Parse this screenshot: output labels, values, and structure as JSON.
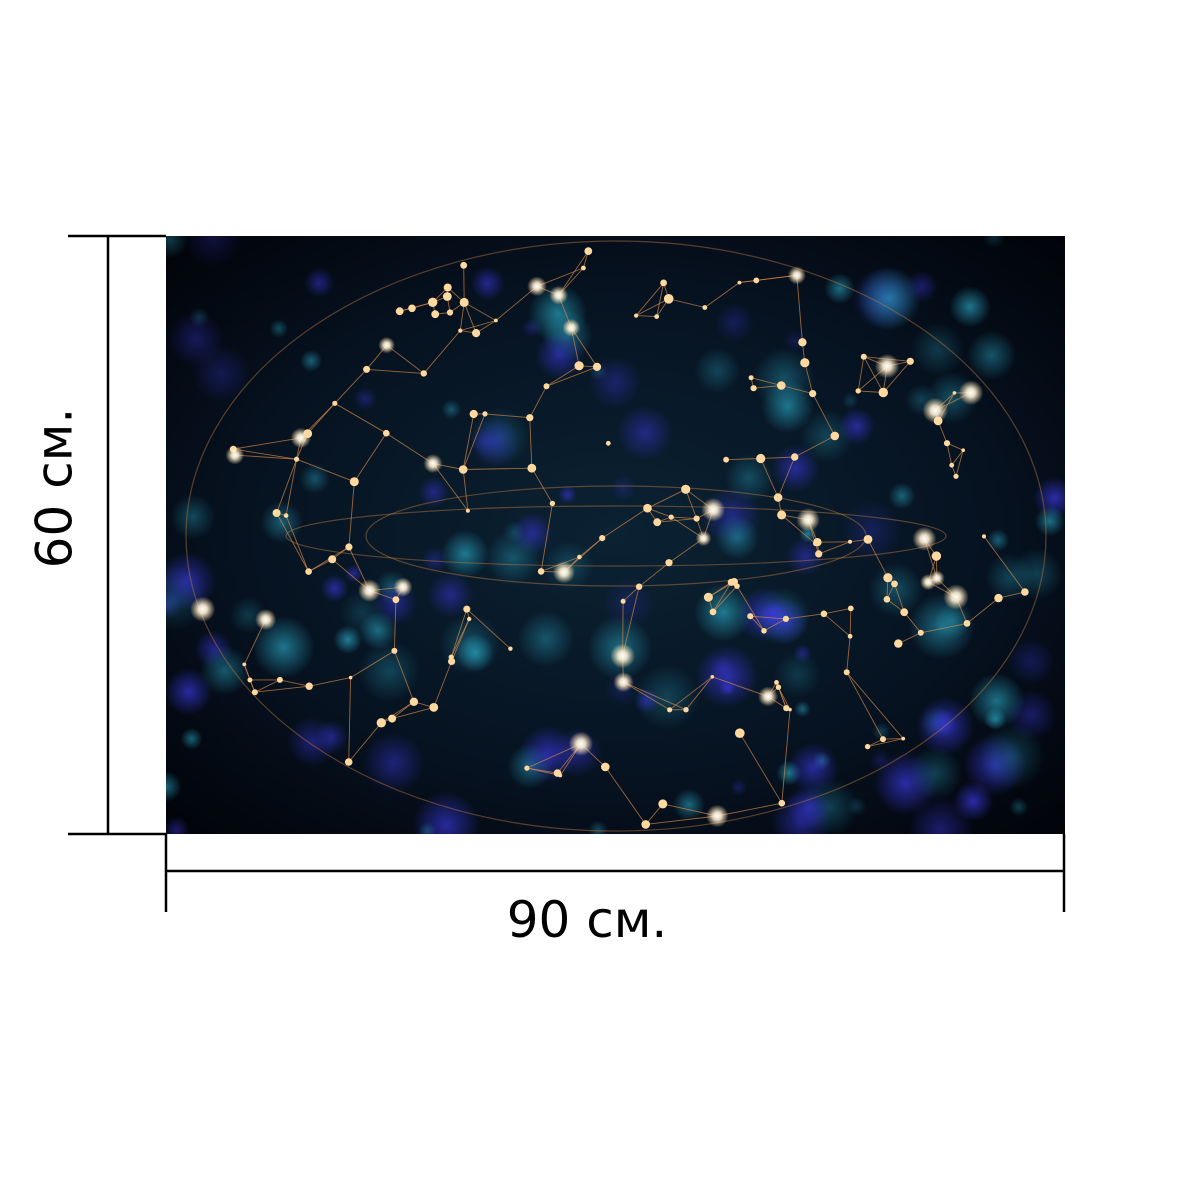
{
  "dimensions": {
    "height_label": "60 см.",
    "width_label": "90 см."
  },
  "artwork": {
    "subject": "network-sphere-image",
    "colors": {
      "background": "#02060f",
      "teal": "#1f8aa5",
      "blue": "#2a2fd0",
      "line": "#d98a48",
      "node": "#ffd9a0",
      "node_bright": "#ffffff"
    }
  }
}
